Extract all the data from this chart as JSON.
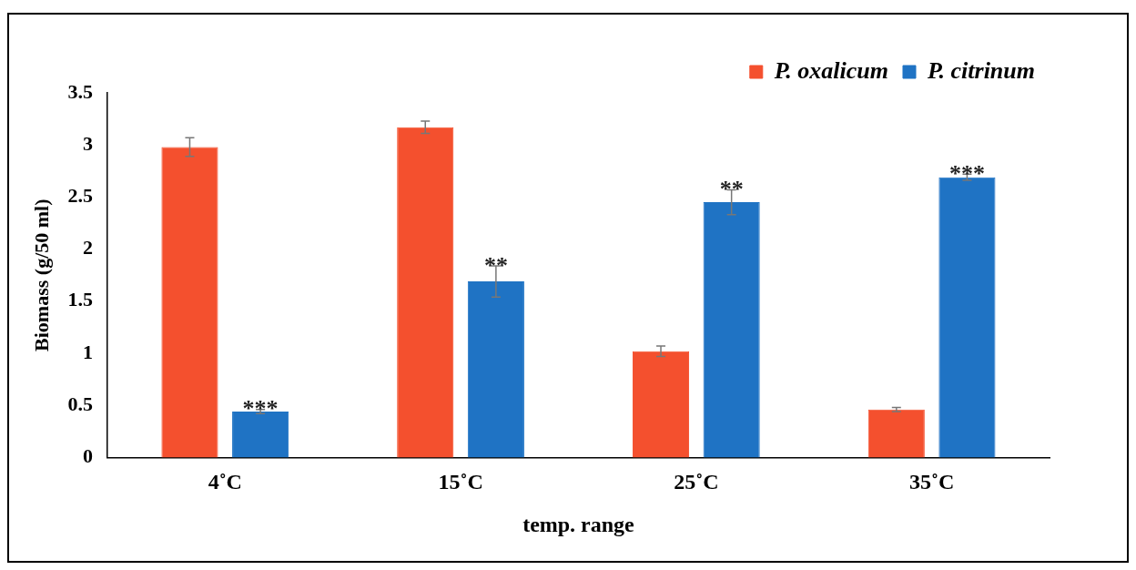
{
  "chart_data": {
    "type": "bar",
    "xlabel": "temp. range",
    "ylabel": "Biomass (g/50 ml)",
    "categories": [
      "4˚C",
      "15˚C",
      "25˚C",
      "35˚C"
    ],
    "series": [
      {
        "name": "P. oxalicum",
        "color": "#f4502e",
        "values": [
          2.98,
          3.17,
          1.02,
          0.46
        ],
        "errors": [
          0.09,
          0.06,
          0.05,
          0.02
        ]
      },
      {
        "name": "P. citrinum",
        "color": "#1f73c4",
        "values": [
          0.44,
          1.69,
          2.45,
          2.69
        ],
        "errors": [
          0.02,
          0.15,
          0.12,
          0.03
        ]
      }
    ],
    "ylim": [
      0,
      3.5
    ],
    "yticks": [
      0,
      0.5,
      1,
      1.5,
      2,
      2.5,
      3,
      3.5
    ],
    "grid": false,
    "legend": "top right",
    "annotations": [
      "***",
      "**",
      "**",
      "***"
    ]
  }
}
